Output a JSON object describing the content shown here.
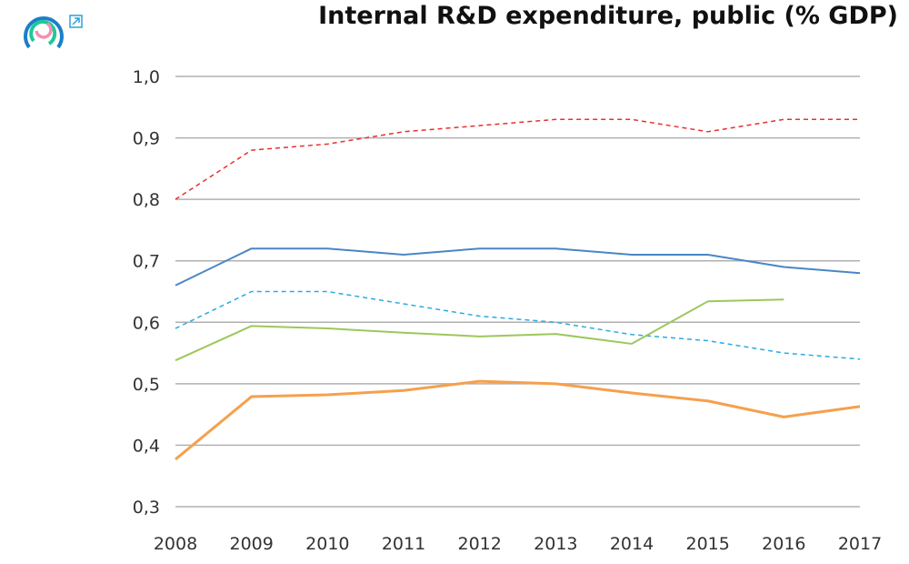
{
  "chart_data": {
    "type": "line",
    "title": "Internal R&D expenditure, public (% GDP)",
    "xlabel": "",
    "ylabel": "",
    "x": [
      "2008",
      "2009",
      "2010",
      "2011",
      "2012",
      "2013",
      "2014",
      "2015",
      "2016",
      "2017"
    ],
    "ylim": [
      0.3,
      1.0
    ],
    "yticks": [
      "0,3",
      "0,4",
      "0,5",
      "0,6",
      "0,7",
      "0,8",
      "0,9",
      "1,0"
    ],
    "grid": "horizontal",
    "legend": "none",
    "series": [
      {
        "color": "#e8302f",
        "dash": true,
        "width": 1.5,
        "values": [
          0.8,
          0.88,
          0.89,
          0.91,
          0.92,
          0.93,
          0.93,
          0.91,
          0.93,
          0.93
        ]
      },
      {
        "color": "#4a86c5",
        "dash": false,
        "width": 2,
        "values": [
          0.66,
          0.72,
          0.72,
          0.71,
          0.72,
          0.72,
          0.71,
          0.71,
          0.69,
          0.68
        ]
      },
      {
        "color": "#2aaae2",
        "dash": true,
        "width": 1.5,
        "values": [
          0.59,
          0.65,
          0.65,
          0.63,
          0.61,
          0.6,
          0.58,
          0.57,
          0.55,
          0.54
        ]
      },
      {
        "color": "#9dc75b",
        "dash": false,
        "width": 2,
        "values": [
          0.538,
          0.594,
          0.59,
          0.583,
          0.577,
          0.581,
          0.565,
          0.634,
          0.637,
          null
        ]
      },
      {
        "color": "#f5a04e",
        "dash": false,
        "width": 3,
        "values": [
          0.377,
          0.479,
          0.482,
          0.489,
          0.504,
          0.5,
          0.485,
          0.472,
          0.446,
          0.463
        ]
      }
    ]
  },
  "icons": {
    "logo": "circular-logo",
    "expand": "expand-arrow-icon"
  }
}
